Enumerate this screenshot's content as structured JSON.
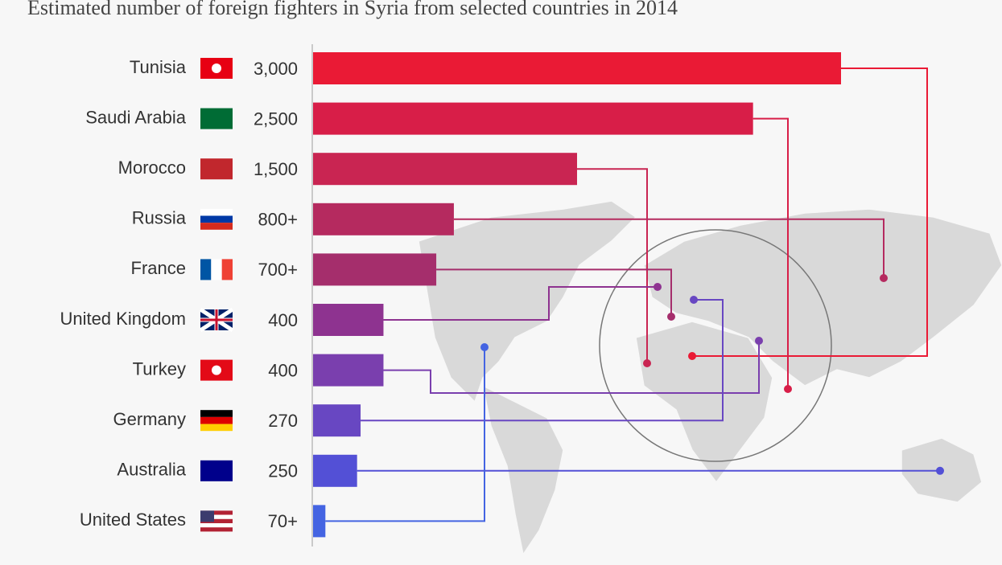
{
  "chart_data": {
    "type": "bar",
    "orientation": "horizontal",
    "title": "Estimated number of foreign fighters in Syria from selected countries in 2014",
    "categories": [
      "Tunisia",
      "Saudi Arabia",
      "Morocco",
      "Russia",
      "France",
      "United Kingdom",
      "Turkey",
      "Germany",
      "Australia",
      "United States"
    ],
    "values": [
      3000,
      2500,
      1500,
      800,
      700,
      400,
      400,
      270,
      250,
      70
    ],
    "value_labels": [
      "3,000",
      "2,500",
      "1,500",
      "800+",
      "700+",
      "400",
      "400",
      "270",
      "250",
      "70+"
    ],
    "colors": [
      "#ea1a35",
      "#d81e48",
      "#c92552",
      "#b52a5f",
      "#a52e6c",
      "#8e3390",
      "#7a3fae",
      "#6847c2",
      "#5350d6",
      "#4464e2"
    ]
  }
}
